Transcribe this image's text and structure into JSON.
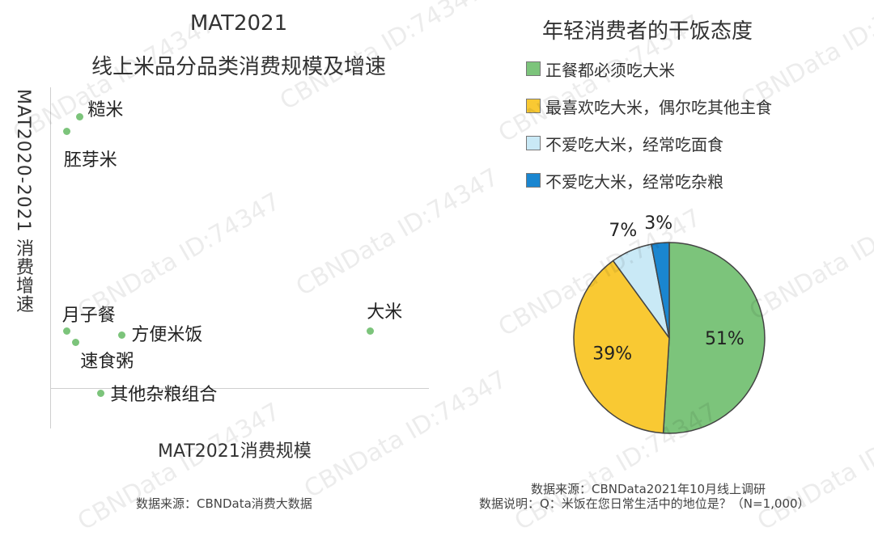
{
  "chart_data": [
    {
      "type": "scatter",
      "title": "MAT2021",
      "subtitle": "线上米品分品类消费规模及增速",
      "xlabel": "MAT2021消费规模",
      "ylabel": "MAT2020-2021 消费增速",
      "xlim": [
        0,
        100
      ],
      "ylim": [
        0,
        100
      ],
      "points": [
        {
          "label": "糙米",
          "x": 7,
          "y": 88
        },
        {
          "label": "胚芽米",
          "x": 4,
          "y": 84
        },
        {
          "label": "月子餐",
          "x": 4,
          "y": 29
        },
        {
          "label": "速食粥",
          "x": 6,
          "y": 26
        },
        {
          "label": "方便米饭",
          "x": 17,
          "y": 28
        },
        {
          "label": "大米",
          "x": 76,
          "y": 29
        },
        {
          "label": "其他杂粮组合",
          "x": 12,
          "y": 12
        }
      ],
      "source": "数据来源：CBNData消费大数据",
      "colors": {
        "point": "#7cc47b"
      }
    },
    {
      "type": "pie",
      "title": "年轻消费者的干饭态度",
      "slices": [
        {
          "label": "正餐都必须吃大米",
          "value": 51,
          "display": "51%",
          "color": "#7cc47b"
        },
        {
          "label": "最喜欢吃大米，偶尔吃其他主食",
          "value": 39,
          "display": "39%",
          "color": "#f9c933"
        },
        {
          "label": "不爱吃大米，经常吃面食",
          "value": 7,
          "display": "7%",
          "color": "#c9e9f6"
        },
        {
          "label": "不爱吃大米，经常吃杂粮",
          "value": 3,
          "display": "3%",
          "color": "#1a86d0"
        }
      ],
      "legend_position": "top",
      "source": "数据来源：CBNData2021年10月线上调研",
      "note": "数据说明：Q：米饭在您日常生活中的地位是？（N=1,000）"
    }
  ],
  "watermark": "CBNData ID:74347"
}
